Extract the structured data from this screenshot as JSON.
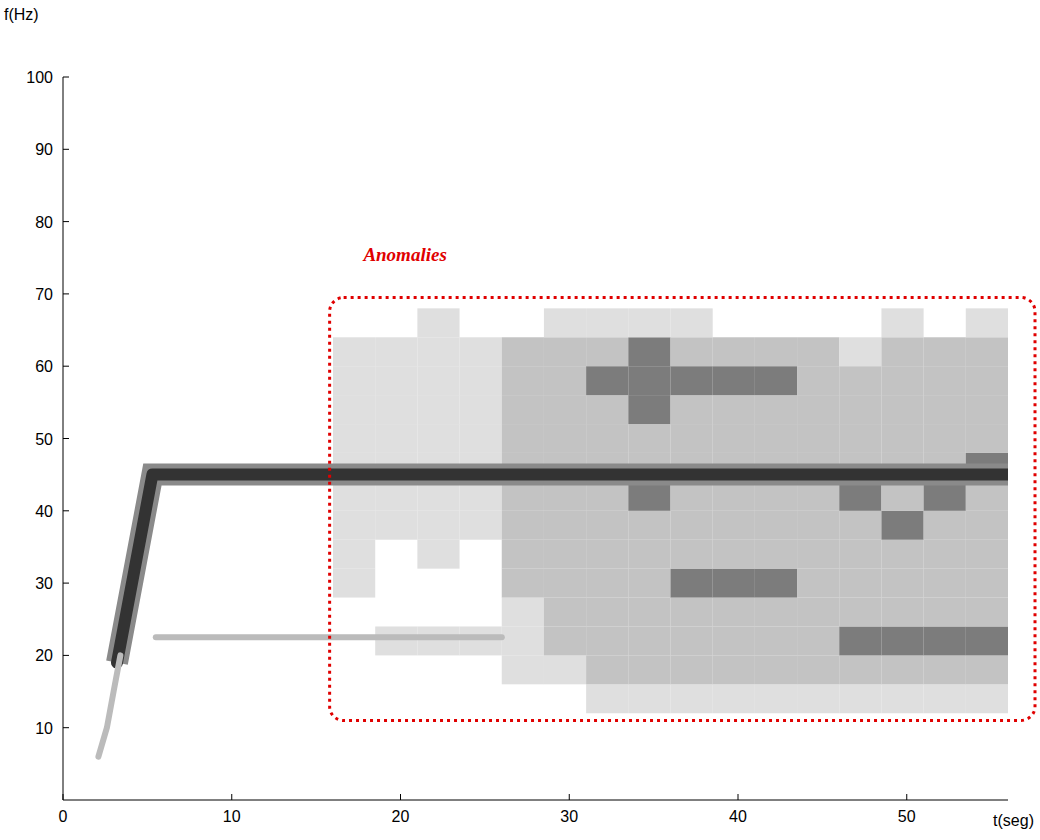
{
  "chart_data": {
    "type": "spectrogram",
    "x_label": "t(seg)",
    "y_label": "f(Hz)",
    "xlim": [
      0,
      56
    ],
    "ylim": [
      0,
      100
    ],
    "xticks": [
      0,
      10,
      20,
      30,
      40,
      50
    ],
    "yticks": [
      10,
      20,
      30,
      40,
      50,
      60,
      70,
      80,
      90,
      100
    ],
    "grid": false,
    "cell_x": [
      16,
      18.5,
      21,
      23.5,
      26,
      28.5,
      31,
      33.5,
      36,
      38.5,
      41,
      43.5,
      46,
      48.5,
      51,
      53.5,
      56
    ],
    "cell_y": [
      12,
      16,
      20,
      24,
      28,
      32,
      36,
      40,
      44,
      48,
      52,
      56,
      60,
      64,
      68
    ],
    "cells": [
      [
        0,
        0,
        0,
        0,
        0,
        0,
        1,
        1,
        1,
        1,
        1,
        1,
        1,
        1,
        1,
        1
      ],
      [
        0,
        0,
        0,
        0,
        1,
        1,
        2,
        2,
        2,
        2,
        2,
        2,
        2,
        2,
        2,
        2
      ],
      [
        0,
        1,
        1,
        1,
        1,
        2,
        2,
        2,
        2,
        2,
        2,
        2,
        3,
        3,
        3,
        3
      ],
      [
        0,
        0,
        0,
        0,
        1,
        2,
        2,
        2,
        2,
        2,
        2,
        2,
        2,
        2,
        2,
        2
      ],
      [
        1,
        0,
        0,
        0,
        2,
        2,
        2,
        2,
        3,
        3,
        3,
        2,
        2,
        2,
        2,
        2
      ],
      [
        1,
        0,
        1,
        0,
        2,
        2,
        2,
        2,
        2,
        2,
        2,
        2,
        2,
        2,
        2,
        2
      ],
      [
        1,
        1,
        1,
        1,
        2,
        2,
        2,
        2,
        2,
        2,
        2,
        2,
        2,
        3,
        2,
        2
      ],
      [
        1,
        1,
        1,
        1,
        2,
        2,
        2,
        3,
        2,
        2,
        2,
        2,
        3,
        2,
        3,
        2
      ],
      [
        1,
        1,
        1,
        1,
        2,
        2,
        2,
        2,
        2,
        2,
        2,
        2,
        2,
        2,
        2,
        3
      ],
      [
        1,
        1,
        1,
        1,
        2,
        2,
        2,
        2,
        2,
        2,
        2,
        2,
        2,
        2,
        2,
        2
      ],
      [
        1,
        1,
        1,
        1,
        2,
        2,
        2,
        3,
        2,
        2,
        2,
        2,
        2,
        2,
        2,
        2
      ],
      [
        1,
        1,
        1,
        1,
        2,
        2,
        3,
        3,
        3,
        3,
        3,
        2,
        2,
        2,
        2,
        2
      ],
      [
        1,
        1,
        1,
        1,
        2,
        2,
        2,
        3,
        2,
        2,
        2,
        2,
        1,
        2,
        2,
        2
      ],
      [
        0,
        0,
        1,
        0,
        0,
        1,
        1,
        1,
        1,
        0,
        0,
        0,
        0,
        1,
        0,
        1
      ]
    ],
    "series": [
      {
        "type": "line",
        "color": "#333333",
        "x": [
          3.2,
          5.3,
          56
        ],
        "values": [
          19,
          45,
          45
        ]
      },
      {
        "type": "line",
        "color": "#bbbbbb",
        "x": [
          2.1,
          2.6,
          3.0,
          3.4
        ],
        "values": [
          6,
          10,
          15,
          20
        ]
      },
      {
        "type": "line",
        "color": "#bbbbbb",
        "x": [
          5.5,
          26
        ],
        "values": [
          22.5,
          22.5
        ]
      }
    ],
    "annotations": [
      {
        "text": "Anomalies",
        "color": "#e00000",
        "line_style": "dotted",
        "x": 17.8,
        "y": 74.5,
        "x0": 15.8,
        "x1": 57.6,
        "y0": 11,
        "y1": 69.5
      }
    ]
  }
}
